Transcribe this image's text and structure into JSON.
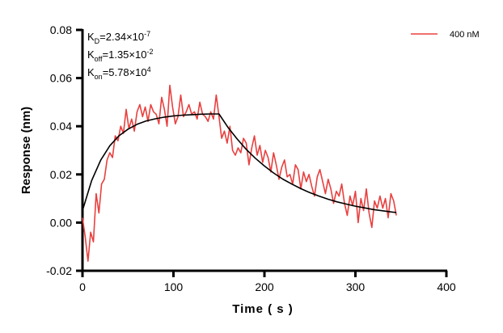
{
  "chart_data": {
    "type": "line",
    "xlabel": "Time ( s )",
    "ylabel": "Response (nm)",
    "xlim": [
      0,
      400
    ],
    "ylim": [
      -0.02,
      0.08
    ],
    "xticks": [
      "0",
      "100",
      "200",
      "300",
      "400"
    ],
    "xtick_values": [
      0,
      100,
      200,
      300,
      400
    ],
    "yticks": [
      "-0.02",
      "0.00",
      "0.02",
      "0.04",
      "0.06",
      "0.08"
    ],
    "ytick_values": [
      -0.02,
      0,
      0.02,
      0.04,
      0.06,
      0.08
    ],
    "grid": false,
    "legend_position": "top-right",
    "annotations": {
      "kd": {
        "base": "K",
        "sub": "D",
        "text": "=2.34×10",
        "sup": "-7"
      },
      "koff": {
        "base": "K",
        "sub": "off",
        "text": "=1.35×10",
        "sup": "-2"
      },
      "kon": {
        "base": "K",
        "sub": "on",
        "text": "=5.78×10",
        "sup": "4"
      }
    },
    "series": [
      {
        "name": "400 nM",
        "color": "#e8403f",
        "x": [
          0,
          3,
          6,
          9,
          12,
          15,
          18,
          21,
          24,
          27,
          30,
          33,
          36,
          39,
          42,
          45,
          48,
          51,
          54,
          57,
          60,
          63,
          66,
          69,
          72,
          75,
          78,
          81,
          84,
          87,
          90,
          93,
          96,
          99,
          102,
          105,
          108,
          111,
          114,
          117,
          120,
          123,
          126,
          129,
          132,
          135,
          138,
          141,
          144,
          147,
          150,
          153,
          156,
          159,
          162,
          165,
          168,
          171,
          174,
          177,
          180,
          183,
          186,
          189,
          192,
          195,
          198,
          201,
          204,
          207,
          210,
          213,
          216,
          219,
          222,
          225,
          228,
          231,
          234,
          237,
          240,
          243,
          246,
          249,
          252,
          255,
          258,
          261,
          264,
          267,
          270,
          273,
          276,
          279,
          282,
          285,
          288,
          291,
          294,
          297,
          300,
          303,
          306,
          309,
          312,
          315,
          318,
          321,
          324,
          327,
          330,
          333,
          336,
          339,
          342,
          345
        ],
        "y": [
          0.002,
          -0.006,
          -0.016,
          -0.004,
          -0.008,
          0.012,
          0.004,
          0.016,
          0.018,
          0.026,
          0.029,
          0.027,
          0.036,
          0.034,
          0.04,
          0.037,
          0.047,
          0.039,
          0.043,
          0.038,
          0.046,
          0.049,
          0.044,
          0.048,
          0.042,
          0.049,
          0.046,
          0.045,
          0.041,
          0.052,
          0.047,
          0.04,
          0.057,
          0.048,
          0.041,
          0.044,
          0.053,
          0.044,
          0.046,
          0.049,
          0.045,
          0.046,
          0.043,
          0.05,
          0.045,
          0.044,
          0.042,
          0.046,
          0.043,
          0.053,
          0.044,
          0.035,
          0.038,
          0.033,
          0.04,
          0.03,
          0.028,
          0.031,
          0.029,
          0.035,
          0.033,
          0.024,
          0.031,
          0.036,
          0.028,
          0.032,
          0.025,
          0.03,
          0.027,
          0.021,
          0.029,
          0.024,
          0.018,
          0.023,
          0.026,
          0.019,
          0.02,
          0.016,
          0.024,
          0.022,
          0.014,
          0.021,
          0.017,
          0.02,
          0.015,
          0.011,
          0.019,
          0.022,
          0.017,
          0.012,
          0.018,
          0.014,
          0.008,
          0.013,
          0.011,
          0.016,
          0.008,
          0.003,
          0.011,
          0.007,
          0.013,
          0.0,
          0.01,
          0.005,
          0.014,
          0.004,
          -0.002,
          0.009,
          0.006,
          0.011,
          0.006,
          0.01,
          0.002,
          0.012,
          0.009,
          0.003
        ]
      },
      {
        "color": "#000000",
        "x": [
          0,
          10,
          20,
          30,
          40,
          50,
          60,
          70,
          80,
          90,
          100,
          110,
          120,
          130,
          140,
          150,
          160,
          170,
          180,
          190,
          200,
          210,
          220,
          230,
          240,
          250,
          260,
          270,
          280,
          290,
          300,
          310,
          320,
          330,
          340,
          345
        ],
        "y": [
          0.005,
          0.0174,
          0.0259,
          0.0319,
          0.036,
          0.0388,
          0.0408,
          0.0422,
          0.0431,
          0.0438,
          0.0443,
          0.0446,
          0.0448,
          0.045,
          0.0451,
          0.0451,
          0.0395,
          0.0347,
          0.0304,
          0.0267,
          0.0235,
          0.0206,
          0.0181,
          0.016,
          0.0141,
          0.0124,
          0.011,
          0.0097,
          0.0086,
          0.0077,
          0.0068,
          0.0061,
          0.0054,
          0.0049,
          0.0044,
          0.0042
        ]
      }
    ]
  }
}
